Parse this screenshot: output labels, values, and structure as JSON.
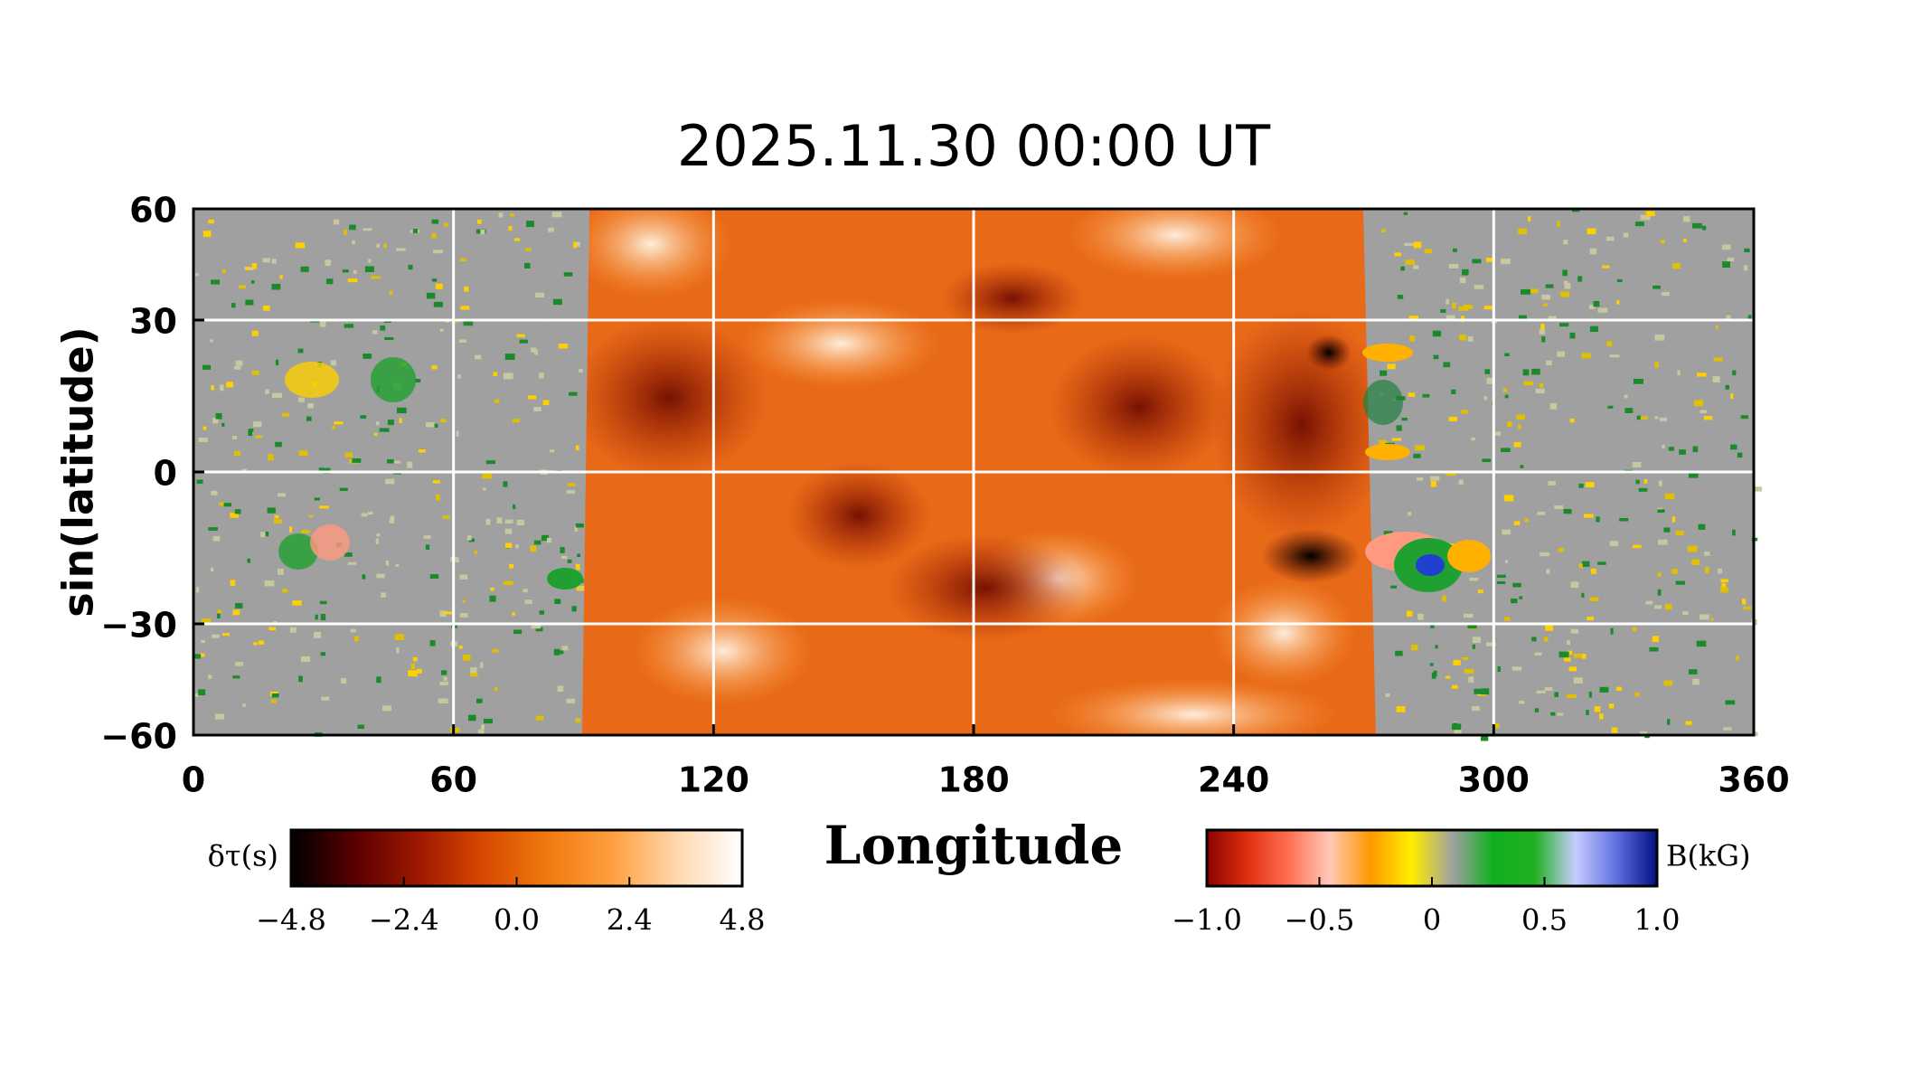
{
  "chart_data": {
    "type": "heatmap",
    "title": "2025.11.30  00:00  UT",
    "xlabel": "Longitude",
    "ylabel": "sin(latitude)",
    "xlim": [
      0,
      360
    ],
    "xticks": [
      0,
      60,
      120,
      180,
      240,
      300,
      360
    ],
    "ylim": [
      -60,
      60
    ],
    "yscale": "sin",
    "yticks": [
      {
        "value": -60,
        "label": "−60"
      },
      {
        "value": -30,
        "label": "−30"
      },
      0,
      30,
      60
    ],
    "grid": true,
    "colorbars": [
      {
        "label": "δτ(s)",
        "lim": [
          -4.8,
          4.8
        ],
        "ticks": [
          {
            "value": -4.8,
            "label": "−4.8"
          },
          {
            "value": -2.4,
            "label": "−2.4"
          },
          {
            "value": 0,
            "label": "0.0"
          },
          2.4,
          4.8
        ],
        "colors": [
          "#000000",
          "#5a0000",
          "#a01800",
          "#d84a00",
          "#f07a10",
          "#ffa040",
          "#ffd8b0",
          "#ffffff"
        ]
      },
      {
        "label": "B(kG)",
        "lim": [
          -1.0,
          1.0
        ],
        "ticks": [
          {
            "value": -1.0,
            "label": "−1.0"
          },
          {
            "value": -0.5,
            "label": "−0.5"
          },
          0,
          0.5,
          {
            "value": 1.0,
            "label": "1.0"
          }
        ],
        "colors": [
          "#8b0000",
          "#e03010",
          "#ff7050",
          "#ffc8b8",
          "#ff9900",
          "#ffee00",
          "#a0a0a0",
          "#10b020",
          "#20b020",
          "#c8ccff",
          "#6070e0",
          "#001080"
        ]
      }
    ]
  }
}
